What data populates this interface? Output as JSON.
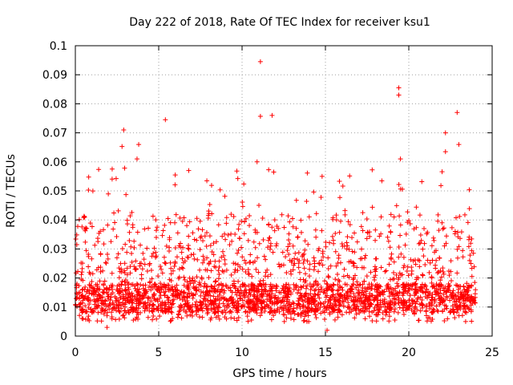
{
  "chart_data": {
    "type": "scatter",
    "title": "Day 222 of 2018, Rate Of TEC Index for receiver ksu1",
    "xlabel": "GPS time / hours",
    "ylabel": "ROTI / TECUs",
    "xlim": [
      0,
      25
    ],
    "ylim": [
      0,
      0.1
    ],
    "x_ticks": [
      0,
      5,
      10,
      15,
      20,
      25
    ],
    "x_tick_labels": [
      "0",
      "5",
      "10",
      "15",
      "20",
      "25"
    ],
    "y_ticks": [
      0,
      0.01,
      0.02,
      0.03,
      0.04,
      0.05,
      0.06,
      0.07,
      0.08,
      0.09,
      0.1
    ],
    "y_tick_labels": [
      "0",
      "0.01",
      "0.02",
      "0.03",
      "0.04",
      "0.05",
      "0.06",
      "0.07",
      "0.08",
      "0.09",
      "0.1"
    ],
    "grid": true,
    "marker": "plus",
    "color": "#ff0000",
    "data_x_range": [
      0,
      24
    ],
    "notable_points": [
      {
        "x": 11.1,
        "y": 0.0945
      },
      {
        "x": 19.4,
        "y": 0.0855
      },
      {
        "x": 19.4,
        "y": 0.083
      },
      {
        "x": 22.9,
        "y": 0.077
      },
      {
        "x": 5.4,
        "y": 0.0745
      },
      {
        "x": 11.1,
        "y": 0.0757
      },
      {
        "x": 11.8,
        "y": 0.076
      },
      {
        "x": 2.9,
        "y": 0.071
      },
      {
        "x": 22.2,
        "y": 0.07
      },
      {
        "x": 2.8,
        "y": 0.0653
      },
      {
        "x": 3.8,
        "y": 0.066
      },
      {
        "x": 23.0,
        "y": 0.066
      },
      {
        "x": 22.2,
        "y": 0.0635
      },
      {
        "x": 3.7,
        "y": 0.061
      },
      {
        "x": 19.5,
        "y": 0.061
      },
      {
        "x": 10.9,
        "y": 0.06
      },
      {
        "x": 6.8,
        "y": 0.057
      },
      {
        "x": 14.8,
        "y": 0.055
      },
      {
        "x": 11.9,
        "y": 0.0565
      },
      {
        "x": 15.1,
        "y": 0.002
      },
      {
        "x": 1.9,
        "y": 0.003
      }
    ],
    "bulk_distribution": {
      "typical_min": 0.005,
      "typical_max": 0.025,
      "dense_core": [
        0.008,
        0.018
      ],
      "burst_peaks_up_to": 0.058
    }
  }
}
